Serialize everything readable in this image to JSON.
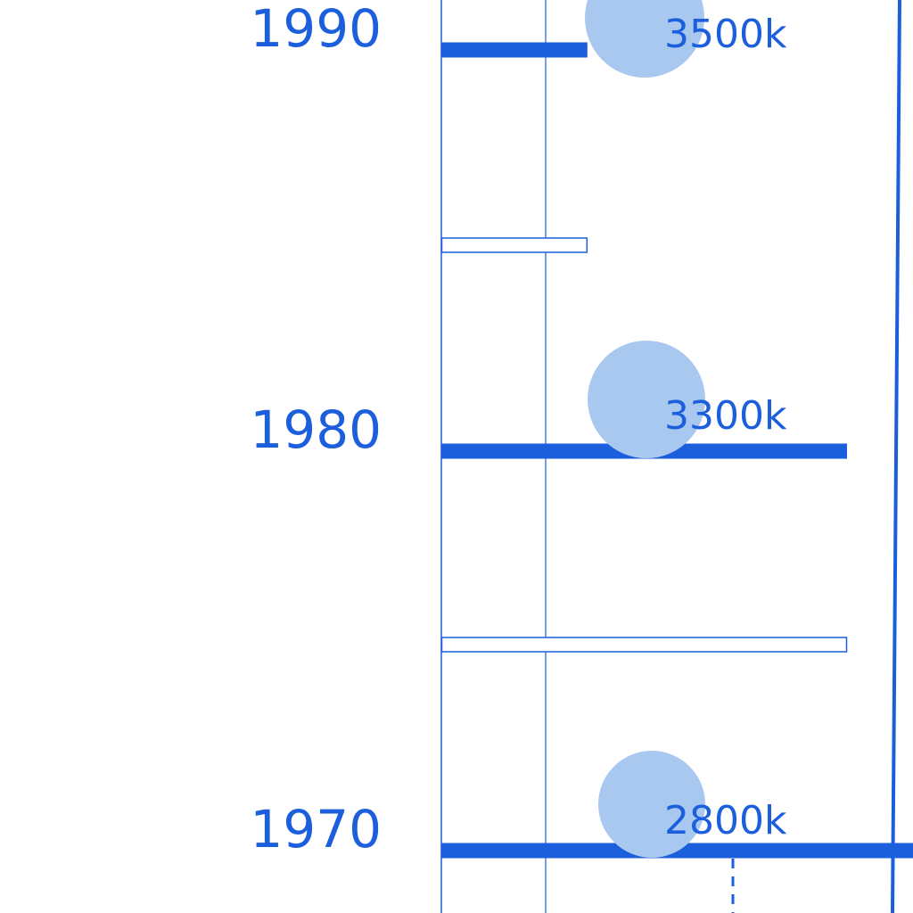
{
  "colors": {
    "primary": "#1b5fdc",
    "bubble": "#a8c8f0",
    "background": "#ffffff"
  },
  "chart_data": {
    "type": "bar",
    "orientation": "horizontal",
    "categories": [
      "1990",
      "1980",
      "1970"
    ],
    "bars": [
      {
        "year": "1990",
        "solid": 0.18,
        "outline": 0.18
      },
      {
        "year": "1980",
        "solid": 0.5,
        "outline": 0.5
      },
      {
        "year": "1970",
        "solid": 0.6
      }
    ],
    "labels": [
      {
        "year": "1990",
        "text": "3500k",
        "value": 3500
      },
      {
        "year": "1980",
        "text": "3300k",
        "value": 3300
      },
      {
        "year": "1970",
        "text": "2800k",
        "value": 2800
      }
    ],
    "legend": "none"
  }
}
